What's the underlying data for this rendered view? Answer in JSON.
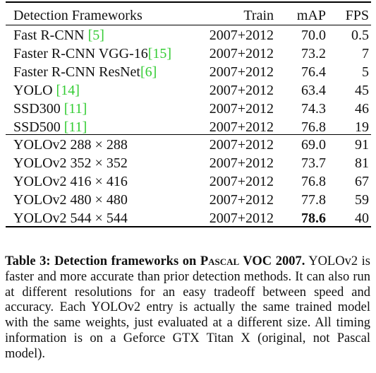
{
  "table": {
    "headers": {
      "name": "Detection Frameworks",
      "train": "Train",
      "map": "mAP",
      "fps": "FPS"
    },
    "rows": [
      {
        "name": "Fast R-CNN ",
        "ref": "[5]",
        "train": "2007+2012",
        "map": "70.0",
        "fps": "0.5"
      },
      {
        "name": "Faster R-CNN VGG-16",
        "ref": "[15]",
        "train": "2007+2012",
        "map": "73.2",
        "fps": "7"
      },
      {
        "name": "Faster R-CNN ResNet",
        "ref": "[6]",
        "train": "2007+2012",
        "map": "76.4",
        "fps": "5"
      },
      {
        "name": "YOLO ",
        "ref": "[14]",
        "train": "2007+2012",
        "map": "63.4",
        "fps": "45"
      },
      {
        "name": "SSD300 ",
        "ref": "[11]",
        "train": "2007+2012",
        "map": "74.3",
        "fps": "46"
      },
      {
        "name": "SSD500 ",
        "ref": "[11]",
        "train": "2007+2012",
        "map": "76.8",
        "fps": "19"
      },
      {
        "name": "YOLOv2 288 × 288",
        "ref": "",
        "train": "2007+2012",
        "map": "69.0",
        "fps": "91"
      },
      {
        "name": "YOLOv2 352 × 352",
        "ref": "",
        "train": "2007+2012",
        "map": "73.7",
        "fps": "81"
      },
      {
        "name": "YOLOv2 416 × 416",
        "ref": "",
        "train": "2007+2012",
        "map": "76.8",
        "fps": "67"
      },
      {
        "name": "YOLOv2 480 × 480",
        "ref": "",
        "train": "2007+2012",
        "map": "77.8",
        "fps": "59"
      },
      {
        "name": "YOLOv2 544 × 544",
        "ref": "",
        "train": "2007+2012",
        "map": "78.6",
        "fps": "40",
        "map_bold": true
      }
    ]
  },
  "caption": {
    "label": "Table 3:",
    "title_pre": "Detection frameworks on ",
    "title_sc": "Pascal",
    "title_post": " VOC 2007.",
    "body": "YOLOv2 is faster and more accurate than prior detection methods. It can also run at different resolutions for an easy tradeoff between speed and accuracy. Each YOLOv2 entry is actually the same trained model with the same weights, just evaluated at a different size. All timing information is on a Geforce GTX Titan X (original, not Pascal model)."
  },
  "colors": {
    "reference_link": "#33cc33",
    "text": "#111111",
    "rule": "#000000"
  }
}
